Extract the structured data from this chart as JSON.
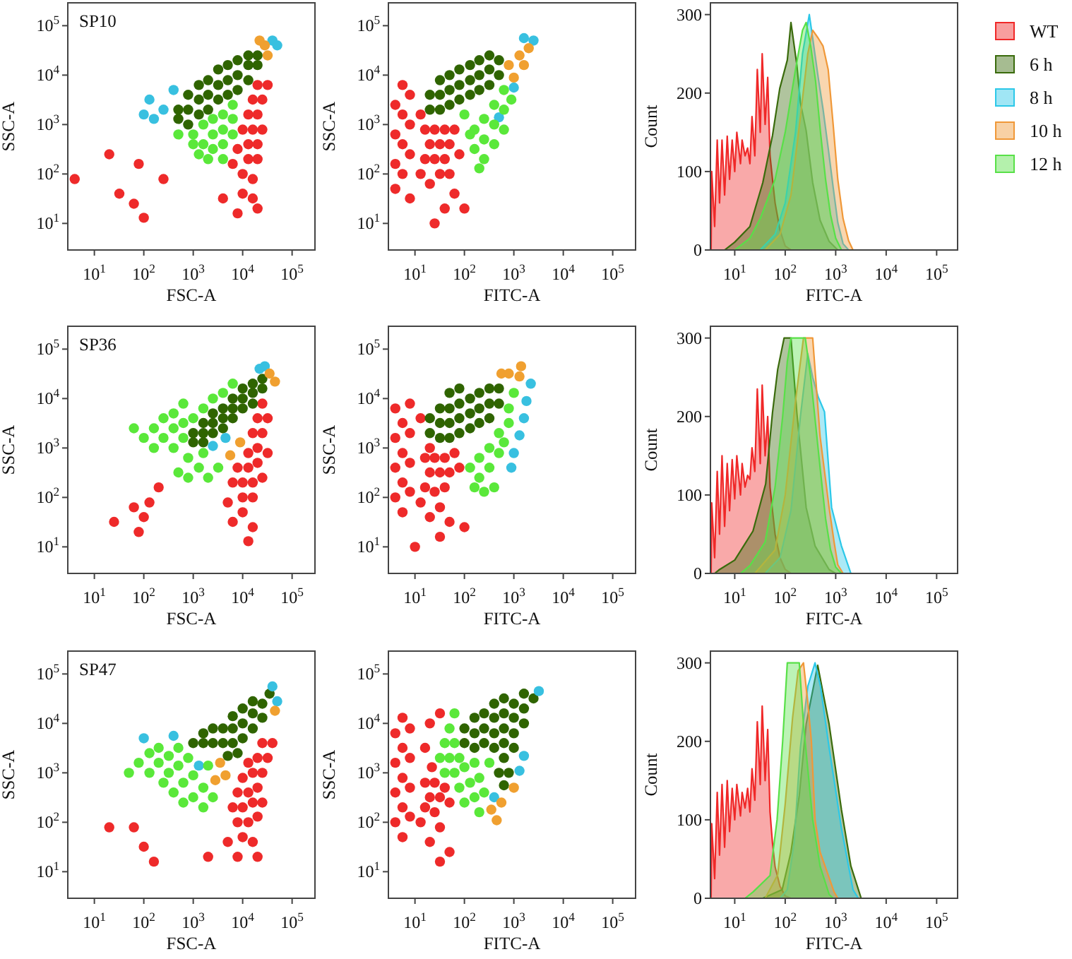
{
  "chart_data": [
    {
      "type": "scatter",
      "title": "SP10",
      "xlabel": "FSC-A",
      "ylabel": "SSC-A",
      "log": "xy",
      "xlim": [
        2.9,
        290000
      ],
      "ylim": [
        2.9,
        290000
      ],
      "xticks": [
        {
          "value": 10,
          "label": "10$^{1}$"
        },
        {
          "value": 100,
          "label": "10$^{2}$"
        },
        {
          "value": 1000,
          "label": "10$^{3}$"
        },
        {
          "value": 10000,
          "label": "10$^{4}$"
        },
        {
          "value": 100000,
          "label": "10$^{5}$"
        }
      ],
      "yticks": [
        {
          "value": 10,
          "label": "10$^{1}$"
        },
        {
          "value": 100,
          "label": "10$^{2}$"
        },
        {
          "value": 1000,
          "label": "10$^{3}$"
        },
        {
          "value": 10000,
          "label": "10$^{4}$"
        },
        {
          "value": 100000,
          "label": "10$^{5}$"
        }
      ],
      "marker": "circle",
      "series": [
        {
          "color": "#ee2a2a",
          "x": [
            10000,
            16000,
            13000,
            20000,
            7900,
            13000,
            20000,
            10000,
            16000,
            25000,
            13000,
            20000,
            16000,
            25000,
            20000,
            32000,
            6300,
            10000,
            16000,
            4000,
            7900,
            20000,
            32,
            79,
            100,
            20,
            250,
            63,
            4
          ],
          "values": [
            100,
            79,
            200,
            200,
            320,
            400,
            400,
            790,
            790,
            790,
            1600,
            1600,
            3200,
            3200,
            6300,
            6300,
            160,
            40,
            32,
            32,
            16,
            20,
            40,
            160,
            13,
            250,
            79,
            25,
            79
          ]
        },
        {
          "color": "#2f6400",
          "x": [
            500,
            500,
            790,
            790,
            790,
            1300,
            1300,
            1300,
            2000,
            2000,
            2000,
            3200,
            3200,
            3200,
            5000,
            5000,
            5000,
            7900,
            7900,
            7900,
            13000,
            13000,
            13000,
            20000,
            20000
          ],
          "values": [
            1300,
            2000,
            1000,
            2000,
            4000,
            1600,
            3200,
            6300,
            2000,
            4000,
            7900,
            3200,
            6300,
            13000,
            4000,
            7900,
            16000,
            5000,
            10000,
            20000,
            7900,
            16000,
            25000,
            16000,
            25000
          ]
        },
        {
          "color": "#38c0e0",
          "x": [
            130,
            250,
            400,
            160,
            100,
            40000,
            50000
          ],
          "values": [
            3200,
            2000,
            5000,
            1300,
            1600,
            50000,
            40000
          ]
        },
        {
          "color": "#f0a030",
          "x": [
            32000,
            28000,
            22000
          ],
          "values": [
            25000,
            40000,
            50000
          ]
        },
        {
          "color": "#5ae83a",
          "x": [
            1000,
            1600,
            1600,
            2500,
            2500,
            2500,
            4000,
            4000,
            4000,
            6300,
            6300,
            6300,
            1300,
            2000,
            500,
            4000,
            1000
          ],
          "values": [
            630,
            400,
            1000,
            320,
            630,
            1300,
            400,
            790,
            1600,
            630,
            1300,
            2500,
            250,
            200,
            630,
            200,
            400
          ]
        }
      ]
    },
    {
      "type": "scatter",
      "xlabel": "FITC-A",
      "ylabel": "SSC-A",
      "log": "xy",
      "xlim": [
        2.9,
        290000
      ],
      "ylim": [
        2.9,
        290000
      ],
      "xticks": [
        {
          "value": 10,
          "label": "10$^{1}$"
        },
        {
          "value": 100,
          "label": "10$^{2}$"
        },
        {
          "value": 1000,
          "label": "10$^{3}$"
        },
        {
          "value": 10000,
          "label": "10$^{4}$"
        },
        {
          "value": 100000,
          "label": "10$^{5}$"
        }
      ],
      "yticks": [
        {
          "value": 10,
          "label": "10$^{1}$"
        },
        {
          "value": 100,
          "label": "10$^{2}$"
        },
        {
          "value": 1000,
          "label": "10$^{3}$"
        },
        {
          "value": 10000,
          "label": "10$^{4}$"
        },
        {
          "value": 100000,
          "label": "10$^{5}$"
        }
      ],
      "marker": "circle",
      "series": [
        {
          "color": "#ee2a2a",
          "x": [
            16,
            25,
            40,
            20,
            32,
            50,
            16,
            25,
            40,
            63,
            13,
            32,
            20,
            50,
            63,
            13,
            100,
            40,
            79,
            4,
            4,
            4,
            5.6,
            5.6,
            5.6,
            5.6,
            7.9,
            7.9,
            7.9,
            4,
            7.9,
            25
          ],
          "values": [
            200,
            200,
            200,
            400,
            400,
            400,
            790,
            790,
            790,
            790,
            1600,
            100,
            63,
            100,
            40,
            100,
            20,
            20,
            250,
            160,
            630,
            2500,
            100,
            400,
            1600,
            6300,
            250,
            1000,
            4000,
            50,
            32,
            10
          ]
        },
        {
          "color": "#2f6400",
          "x": [
            20,
            20,
            32,
            32,
            32,
            50,
            50,
            50,
            79,
            79,
            79,
            130,
            130,
            130,
            200,
            200,
            200,
            320,
            320,
            320,
            500,
            500
          ],
          "values": [
            2000,
            4000,
            2000,
            4000,
            7900,
            2500,
            5000,
            10000,
            3200,
            6300,
            13000,
            4000,
            7900,
            16000,
            5000,
            10000,
            20000,
            6300,
            13000,
            25000,
            10000,
            20000
          ]
        },
        {
          "color": "#38c0e0",
          "x": [
            1600,
            2500,
            500,
            1000
          ],
          "values": [
            56000,
            50000,
            1400,
            5600
          ]
        },
        {
          "color": "#f0a030",
          "x": [
            790,
            1000,
            1300,
            1600,
            2000
          ],
          "values": [
            16000,
            8900,
            25000,
            16000,
            35000
          ]
        },
        {
          "color": "#5ae83a",
          "x": [
            160,
            160,
            250,
            250,
            250,
            400,
            400,
            400,
            630,
            630,
            630,
            890,
            200,
            100,
            130
          ],
          "values": [
            320,
            790,
            200,
            500,
            1300,
            400,
            1000,
            2500,
            790,
            2000,
            5000,
            3200,
            130,
            1600,
            630
          ]
        }
      ]
    },
    {
      "type": "area",
      "xlabel": "FITC-A",
      "ylabel": "Count",
      "log": "x",
      "xlim": [
        3.3,
        260000
      ],
      "ylim": [
        0,
        315
      ],
      "xticks": [
        {
          "value": 10,
          "label": "10$^{1}$"
        },
        {
          "value": 100,
          "label": "10$^{2}$"
        },
        {
          "value": 1000,
          "label": "10$^{3}$"
        },
        {
          "value": 10000,
          "label": "10$^{4}$"
        },
        {
          "value": 100000,
          "label": "10$^{5}$"
        }
      ],
      "yticks": [
        0,
        100,
        200,
        300
      ],
      "legend": "right",
      "series": [
        {
          "name": "WT",
          "color": "#f02828",
          "x": [
            3.4,
            3.5,
            4,
            4.5,
            5,
            5.6,
            6.3,
            7.1,
            7.9,
            8.9,
            10,
            11,
            13,
            14,
            16,
            18,
            20,
            22,
            25,
            28,
            32,
            35,
            40,
            45,
            50,
            56,
            63,
            79,
            100,
            130
          ],
          "values": [
            0,
            100,
            30,
            140,
            60,
            140,
            70,
            145,
            90,
            140,
            100,
            150,
            110,
            140,
            120,
            130,
            110,
            170,
            120,
            230,
            150,
            250,
            160,
            220,
            120,
            90,
            60,
            25,
            5,
            0
          ]
        },
        {
          "name": "6 h",
          "color": "#3a6b0c",
          "x": [
            6.3,
            10,
            20,
            36,
            56,
            78,
            110,
            130,
            170,
            200,
            260,
            350,
            490,
            740,
            1100
          ],
          "values": [
            0,
            10,
            30,
            86,
            146,
            206,
            242,
            290,
            236,
            188,
            152,
            86,
            38,
            11,
            0
          ]
        },
        {
          "name": "8 h",
          "color": "#2cc8e8",
          "x": [
            32,
            63,
            100,
            160,
            220,
            300,
            350,
            450,
            560,
            710,
            890,
            1100,
            1400,
            1800
          ],
          "values": [
            0,
            20,
            60,
            150,
            250,
            300,
            270,
            220,
            180,
            130,
            80,
            35,
            8,
            0
          ]
        },
        {
          "name": "10 h",
          "color": "#f09838",
          "x": [
            40,
            79,
            130,
            200,
            280,
            350,
            450,
            560,
            710,
            890,
            1100,
            1400,
            1800,
            2200
          ],
          "values": [
            0,
            20,
            70,
            170,
            250,
            280,
            270,
            260,
            230,
            160,
            90,
            40,
            12,
            0
          ]
        },
        {
          "name": "12 h",
          "color": "#58e048",
          "x": [
            10,
            20,
            32,
            63,
            100,
            160,
            220,
            260,
            320,
            400,
            500,
            630,
            790,
            1000,
            1300
          ],
          "values": [
            0,
            15,
            40,
            90,
            150,
            230,
            280,
            290,
            260,
            215,
            150,
            90,
            45,
            15,
            0
          ]
        }
      ]
    },
    {
      "type": "scatter",
      "title": "SP36",
      "xlabel": "FSC-A",
      "ylabel": "SSC-A",
      "log": "xy",
      "xlim": [
        2.9,
        290000
      ],
      "ylim": [
        2.9,
        290000
      ],
      "xticks": [
        {
          "value": 10,
          "label": "10$^{1}$"
        },
        {
          "value": 100,
          "label": "10$^{2}$"
        },
        {
          "value": 1000,
          "label": "10$^{3}$"
        },
        {
          "value": 10000,
          "label": "10$^{4}$"
        },
        {
          "value": 100000,
          "label": "10$^{5}$"
        }
      ],
      "yticks": [
        {
          "value": 10,
          "label": "10$^{1}$"
        },
        {
          "value": 100,
          "label": "10$^{2}$"
        },
        {
          "value": 1000,
          "label": "10$^{3}$"
        },
        {
          "value": 10000,
          "label": "10$^{4}$"
        },
        {
          "value": 100000,
          "label": "10$^{5}$"
        }
      ],
      "marker": "circle",
      "series": [
        {
          "color": "#ee2a2a",
          "x": [
            10000,
            16000,
            6300,
            10000,
            16000,
            25000,
            7900,
            13000,
            20000,
            32000,
            13000,
            20000,
            16000,
            25000,
            20000,
            32000,
            25000,
            10000,
            6300,
            16000,
            13000,
            5000,
            63,
            100,
            130,
            79,
            25,
            200
          ],
          "values": [
            100,
            100,
            200,
            200,
            200,
            250,
            400,
            400,
            500,
            790,
            790,
            1000,
            2000,
            2000,
            4000,
            4000,
            7900,
            50,
            32,
            25,
            13,
            79,
            63,
            40,
            79,
            20,
            32,
            160
          ]
        },
        {
          "color": "#2f6400",
          "x": [
            1000,
            1000,
            1600,
            1600,
            1600,
            2500,
            2500,
            2500,
            4000,
            4000,
            4000,
            6300,
            6300,
            6300,
            10000,
            10000,
            10000,
            16000,
            16000,
            16000,
            25000,
            25000
          ],
          "values": [
            1300,
            2000,
            1300,
            2000,
            3200,
            2000,
            3200,
            5000,
            2500,
            4000,
            6300,
            4000,
            6300,
            10000,
            6300,
            10000,
            16000,
            7900,
            13000,
            20000,
            16000,
            25000
          ]
        },
        {
          "color": "#38c0e0",
          "x": [
            2500,
            4500,
            22000,
            28000
          ],
          "values": [
            1100,
            1600,
            40000,
            45000
          ]
        },
        {
          "color": "#f0a030",
          "x": [
            5600,
            8900,
            35000,
            45000
          ],
          "values": [
            710,
            1300,
            32000,
            22000
          ]
        },
        {
          "color": "#5ae83a",
          "x": [
            1000,
            1600,
            2500,
            4000,
            6300,
            100,
            160,
            160,
            250,
            250,
            400,
            400,
            400,
            630,
            630,
            630,
            63,
            500,
            790,
            1300,
            2000,
            3200,
            790,
            1600
          ],
          "values": [
            4000,
            6300,
            10000,
            13000,
            20000,
            1600,
            1000,
            2500,
            1600,
            4000,
            1000,
            2500,
            5000,
            1600,
            3200,
            7900,
            2500,
            320,
            250,
            400,
            250,
            400,
            630,
            790
          ]
        }
      ]
    },
    {
      "type": "scatter",
      "xlabel": "FITC-A",
      "ylabel": "SSC-A",
      "log": "xy",
      "xlim": [
        2.9,
        290000
      ],
      "ylim": [
        2.9,
        290000
      ],
      "xticks": [
        {
          "value": 10,
          "label": "10$^{1}$"
        },
        {
          "value": 100,
          "label": "10$^{2}$"
        },
        {
          "value": 1000,
          "label": "10$^{3}$"
        },
        {
          "value": 10000,
          "label": "10$^{4}$"
        },
        {
          "value": 100000,
          "label": "10$^{5}$"
        }
      ],
      "yticks": [
        {
          "value": 10,
          "label": "10$^{1}$"
        },
        {
          "value": 100,
          "label": "10$^{2}$"
        },
        {
          "value": 1000,
          "label": "10$^{3}$"
        },
        {
          "value": 10000,
          "label": "10$^{4}$"
        },
        {
          "value": 100000,
          "label": "10$^{5}$"
        }
      ],
      "marker": "circle",
      "series": [
        {
          "color": "#ee2a2a",
          "x": [
            16,
            25,
            40,
            20,
            32,
            50,
            16,
            25,
            40,
            63,
            20,
            13,
            32,
            20,
            50,
            100,
            32,
            10,
            4,
            4,
            4,
            4,
            5.6,
            5.6,
            5.6,
            5.6,
            7.9,
            7.9,
            7.9,
            7.9,
            79,
            13
          ],
          "values": [
            160,
            130,
            160,
            320,
            320,
            320,
            630,
            630,
            630,
            790,
            1000,
            79,
            63,
            40,
            32,
            25,
            16,
            10,
            100,
            400,
            1600,
            6300,
            50,
            200,
            790,
            3200,
            130,
            500,
            2000,
            7900,
            400,
            4000
          ]
        },
        {
          "color": "#2f6400",
          "x": [
            20,
            20,
            32,
            32,
            32,
            50,
            50,
            50,
            50,
            79,
            79,
            79,
            79,
            130,
            130,
            130,
            200,
            200,
            200,
            320,
            320,
            320,
            500,
            500
          ],
          "values": [
            2000,
            4000,
            1600,
            3200,
            6300,
            1600,
            3200,
            6300,
            13000,
            2000,
            4000,
            7900,
            16000,
            2500,
            5000,
            10000,
            3200,
            6300,
            13000,
            4000,
            7900,
            16000,
            7900,
            16000
          ]
        },
        {
          "color": "#38c0e0",
          "x": [
            1000,
            1300,
            1600,
            1800,
            2200,
            890
          ],
          "values": [
            790,
            1800,
            4000,
            8900,
            20000,
            400
          ]
        },
        {
          "color": "#f0a030",
          "x": [
            790,
            1300,
            560,
            1400
          ],
          "values": [
            32000,
            28000,
            32000,
            45000
          ]
        },
        {
          "color": "#5ae83a",
          "x": [
            130,
            200,
            200,
            320,
            320,
            500,
            500,
            790,
            790,
            1000,
            250,
            400,
            160,
            630
          ],
          "values": [
            400,
            250,
            630,
            400,
            1000,
            790,
            2000,
            3200,
            6300,
            13000,
            130,
            160,
            160,
            1300
          ]
        }
      ]
    },
    {
      "type": "area",
      "xlabel": "FITC-A",
      "ylabel": "Count",
      "log": "x",
      "xlim": [
        3.3,
        260000
      ],
      "ylim": [
        0,
        315
      ],
      "xticks": [
        {
          "value": 10,
          "label": "10$^{1}$"
        },
        {
          "value": 100,
          "label": "10$^{2}$"
        },
        {
          "value": 1000,
          "label": "10$^{3}$"
        },
        {
          "value": 10000,
          "label": "10$^{4}$"
        },
        {
          "value": 100000,
          "label": "10$^{5}$"
        }
      ],
      "yticks": [
        0,
        100,
        200,
        300
      ],
      "series": [
        {
          "color": "#f02828",
          "x": [
            3.4,
            3.5,
            4,
            4.5,
            5,
            5.6,
            6.3,
            7.1,
            7.9,
            8.9,
            10,
            11,
            13,
            14,
            16,
            18,
            20,
            22,
            25,
            28,
            32,
            35,
            40,
            45,
            50,
            56,
            63,
            79,
            100,
            130
          ],
          "values": [
            0,
            90,
            20,
            130,
            50,
            150,
            60,
            140,
            80,
            145,
            95,
            150,
            100,
            140,
            110,
            125,
            120,
            160,
            130,
            235,
            140,
            240,
            150,
            200,
            110,
            80,
            50,
            20,
            5,
            0
          ]
        },
        {
          "color": "#3a6b0c",
          "x": [
            4,
            5,
            10,
            23,
            41,
            56,
            71,
            95,
            130,
            170,
            260,
            390,
            740,
            1000
          ],
          "values": [
            0,
            5,
            17,
            54,
            114,
            205,
            260,
            300,
            300,
            205,
            84,
            35,
            5,
            0
          ]
        },
        {
          "color": "#2cc8e8",
          "x": [
            40,
            79,
            130,
            200,
            280,
            350,
            450,
            600,
            830,
            1300,
            2000
          ],
          "values": [
            0,
            20,
            80,
            200,
            280,
            250,
            225,
            206,
            84,
            35,
            0
          ]
        },
        {
          "color": "#f09838",
          "x": [
            25,
            63,
            100,
            160,
            230,
            350,
            490,
            740,
            930,
            1100,
            1400
          ],
          "values": [
            0,
            30,
            100,
            220,
            300,
            300,
            175,
            84,
            40,
            11,
            0
          ]
        },
        {
          "color": "#58e048",
          "x": [
            13,
            20,
            40,
            63,
            89,
            110,
            130,
            250,
            320,
            400,
            500,
            630,
            790,
            1000,
            1300
          ],
          "values": [
            0,
            10,
            40,
            110,
            200,
            270,
            300,
            300,
            250,
            190,
            130,
            70,
            30,
            8,
            0
          ]
        }
      ]
    },
    {
      "type": "scatter",
      "title": "SP47",
      "xlabel": "FSC-A",
      "ylabel": "SSC-A",
      "log": "xy",
      "xlim": [
        2.9,
        290000
      ],
      "ylim": [
        2.9,
        290000
      ],
      "xticks": [
        {
          "value": 10,
          "label": "10$^{1}$"
        },
        {
          "value": 100,
          "label": "10$^{2}$"
        },
        {
          "value": 1000,
          "label": "10$^{3}$"
        },
        {
          "value": 10000,
          "label": "10$^{4}$"
        },
        {
          "value": 100000,
          "label": "10$^{5}$"
        }
      ],
      "yticks": [
        {
          "value": 10,
          "label": "10$^{1}$"
        },
        {
          "value": 100,
          "label": "10$^{2}$"
        },
        {
          "value": 1000,
          "label": "10$^{3}$"
        },
        {
          "value": 10000,
          "label": "10$^{4}$"
        },
        {
          "value": 100000,
          "label": "10$^{5}$"
        }
      ],
      "marker": "circle",
      "series": [
        {
          "color": "#ee2a2a",
          "x": [
            7900,
            13000,
            20000,
            6300,
            10000,
            16000,
            25000,
            7900,
            13000,
            20000,
            10000,
            16000,
            25000,
            13000,
            20000,
            32000,
            25000,
            40000,
            10000,
            16000,
            7900,
            20000,
            2000,
            100,
            63,
            160,
            20,
            5000
          ],
          "values": [
            100,
            100,
            130,
            200,
            200,
            250,
            250,
            400,
            400,
            500,
            790,
            1000,
            1000,
            1600,
            2000,
            2000,
            4000,
            4000,
            50,
            40,
            20,
            20,
            20,
            32,
            79,
            16,
            79,
            40
          ]
        },
        {
          "color": "#2f6400",
          "x": [
            1000,
            1600,
            1600,
            2500,
            2500,
            4000,
            4000,
            6300,
            6300,
            6300,
            10000,
            10000,
            10000,
            16000,
            16000,
            16000,
            25000,
            25000,
            35000,
            5000,
            7900
          ],
          "values": [
            4000,
            4000,
            6300,
            4000,
            7900,
            4000,
            7900,
            4000,
            7900,
            14000,
            5000,
            10000,
            20000,
            7900,
            16000,
            28000,
            13000,
            25000,
            40000,
            2200,
            2500
          ]
        },
        {
          "color": "#38c0e0",
          "x": [
            100,
            400,
            1300,
            50000,
            40000
          ],
          "values": [
            5000,
            5600,
            1400,
            28000,
            56000
          ]
        },
        {
          "color": "#f0a030",
          "x": [
            3500,
            2800,
            4500,
            45000
          ],
          "values": [
            1600,
            710,
            890,
            18000
          ]
        },
        {
          "color": "#5ae83a",
          "x": [
            79,
            130,
            130,
            200,
            200,
            320,
            320,
            500,
            500,
            790,
            400,
            630,
            630,
            1000,
            1600,
            1600,
            1000,
            2500,
            250,
            50,
            2000
          ],
          "values": [
            1600,
            1000,
            2500,
            1600,
            3200,
            1000,
            2200,
            1400,
            3200,
            2000,
            400,
            250,
            630,
            320,
            200,
            500,
            890,
            320,
            630,
            1000,
            1400
          ]
        }
      ]
    },
    {
      "type": "scatter",
      "xlabel": "FITC-A",
      "ylabel": "SSC-A",
      "log": "xy",
      "xlim": [
        2.9,
        290000
      ],
      "ylim": [
        2.9,
        290000
      ],
      "xticks": [
        {
          "value": 10,
          "label": "10$^{1}$"
        },
        {
          "value": 100,
          "label": "10$^{2}$"
        },
        {
          "value": 1000,
          "label": "10$^{3}$"
        },
        {
          "value": 10000,
          "label": "10$^{4}$"
        },
        {
          "value": 100000,
          "label": "10$^{5}$"
        }
      ],
      "yticks": [
        {
          "value": 10,
          "label": "10$^{1}$"
        },
        {
          "value": 100,
          "label": "10$^{2}$"
        },
        {
          "value": 1000,
          "label": "10$^{3}$"
        },
        {
          "value": 10000,
          "label": "10$^{4}$"
        },
        {
          "value": 100000,
          "label": "10$^{5}$"
        }
      ],
      "marker": "circle",
      "series": [
        {
          "color": "#ee2a2a",
          "x": [
            16,
            25,
            20,
            32,
            16,
            25,
            40,
            22,
            50,
            13,
            32,
            20,
            50,
            32,
            16,
            20,
            32,
            4,
            4,
            4,
            4,
            5.6,
            5.6,
            5.6,
            5.6,
            5.6,
            7.9,
            7.9,
            7.9,
            7.9
          ],
          "values": [
            200,
            160,
            320,
            320,
            630,
            630,
            500,
            1300,
            250,
            100,
            79,
            40,
            25,
            16,
            3200,
            10000,
            16000,
            100,
            400,
            1600,
            6300,
            50,
            200,
            790,
            3200,
            13000,
            130,
            500,
            2000,
            7900
          ]
        },
        {
          "color": "#2f6400",
          "x": [
            100,
            100,
            160,
            160,
            160,
            250,
            250,
            250,
            400,
            400,
            400,
            400,
            630,
            630,
            630,
            630,
            630,
            1000,
            1000,
            1000,
            1000,
            1600,
            1600,
            1600,
            2500,
            500,
            790,
            630
          ],
          "values": [
            4000,
            7900,
            3200,
            6300,
            13000,
            4000,
            7900,
            16000,
            3200,
            6300,
            13000,
            25000,
            2000,
            4000,
            7900,
            16000,
            32000,
            3200,
            6300,
            13000,
            25000,
            10000,
            20000,
            40000,
            32000,
            1000,
            1000,
            560
          ]
        },
        {
          "color": "#38c0e0",
          "x": [
            1300,
            1600,
            3200,
            400
          ],
          "values": [
            1100,
            2200,
            45000,
            320
          ]
        },
        {
          "color": "#f0a030",
          "x": [
            350,
            560,
            1000,
            450
          ],
          "values": [
            180,
            250,
            500,
            110
          ]
        },
        {
          "color": "#5ae83a",
          "x": [
            32,
            40,
            50,
            50,
            63,
            79,
            40,
            63,
            100,
            160,
            79,
            130,
            200,
            100,
            160,
            250,
            200,
            320,
            63
          ],
          "values": [
            2000,
            4000,
            7900,
            2000,
            4000,
            2000,
            1000,
            1000,
            1300,
            1600,
            500,
            630,
            790,
            250,
            320,
            400,
            160,
            1600,
            16000
          ]
        }
      ]
    },
    {
      "type": "area",
      "xlabel": "FITC-A",
      "ylabel": "Count",
      "log": "x",
      "xlim": [
        3.3,
        260000
      ],
      "ylim": [
        0,
        315
      ],
      "xticks": [
        {
          "value": 10,
          "label": "10$^{1}$"
        },
        {
          "value": 100,
          "label": "10$^{2}$"
        },
        {
          "value": 1000,
          "label": "10$^{3}$"
        },
        {
          "value": 10000,
          "label": "10$^{4}$"
        },
        {
          "value": 100000,
          "label": "10$^{5}$"
        }
      ],
      "yticks": [
        0,
        100,
        200,
        300
      ],
      "series": [
        {
          "color": "#f02828",
          "x": [
            3.4,
            3.5,
            4,
            4.5,
            5,
            5.6,
            6.3,
            7.1,
            7.9,
            8.9,
            10,
            11,
            13,
            14,
            16,
            18,
            20,
            22,
            25,
            28,
            32,
            35,
            40,
            45,
            50,
            56,
            63,
            79,
            100,
            130
          ],
          "values": [
            0,
            95,
            25,
            135,
            55,
            145,
            65,
            150,
            85,
            140,
            100,
            145,
            105,
            135,
            115,
            140,
            110,
            165,
            125,
            225,
            145,
            245,
            150,
            215,
            110,
            70,
            40,
            15,
            3,
            0
          ]
        },
        {
          "color": "#3a6b0c",
          "x": [
            36,
            87,
            130,
            190,
            260,
            440,
            740,
            1300,
            2000,
            3200
          ],
          "values": [
            0,
            11,
            59,
            131,
            222,
            297,
            222,
            113,
            41,
            0
          ]
        },
        {
          "color": "#2cc8e8",
          "x": [
            79,
            110,
            150,
            200,
            280,
            390,
            500,
            740,
            1300,
            2200,
            2800
          ],
          "values": [
            0,
            11,
            71,
            192,
            270,
            300,
            270,
            192,
            89,
            11,
            0
          ]
        },
        {
          "color": "#f09838",
          "x": [
            40,
            71,
            100,
            140,
            180,
            230,
            280,
            330,
            390,
            490,
            930,
            1100
          ],
          "values": [
            0,
            30,
            120,
            230,
            290,
            300,
            250,
            200,
            100,
            59,
            8,
            0
          ]
        },
        {
          "color": "#58e048",
          "x": [
            16,
            23,
            50,
            69,
            89,
            110,
            190,
            230,
            350,
            490,
            740,
            890
          ],
          "values": [
            0,
            8,
            29,
            100,
            200,
            300,
            300,
            222,
            100,
            41,
            5,
            0
          ]
        }
      ]
    }
  ]
}
